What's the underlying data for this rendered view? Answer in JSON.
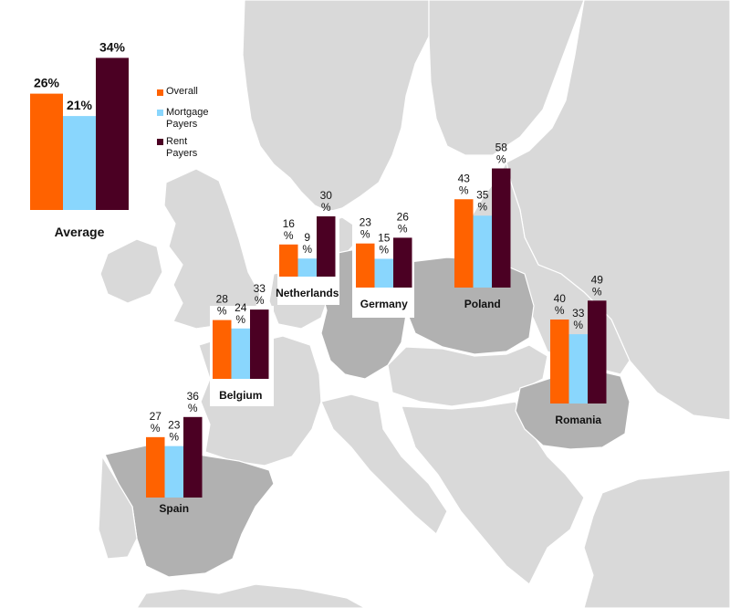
{
  "colors": {
    "overall": "#ff6200",
    "mortgage": "#89d6fd",
    "rent": "#4b0023",
    "land": "#d9d9d9",
    "highlighted": "#b1b1b1",
    "border": "#ffffff",
    "sea": "#ffffff"
  },
  "legend": [
    {
      "key": "overall",
      "label": "Overall"
    },
    {
      "key": "mortgage",
      "label": "Mortgage Payers"
    },
    {
      "key": "rent",
      "label": "Rent Payers"
    }
  ],
  "chart_data": [
    {
      "type": "bar",
      "title": "Average",
      "categories": [
        "Overall",
        "Mortgage Payers",
        "Rent Payers"
      ],
      "values": [
        26,
        21,
        34
      ],
      "value_labels": [
        "26%",
        "21%",
        "34%"
      ]
    },
    {
      "type": "bar",
      "title": "Netherlands",
      "categories": [
        "Overall",
        "Mortgage Payers",
        "Rent Payers"
      ],
      "values": [
        16,
        9,
        30
      ],
      "value_labels": [
        "16 %",
        "9 %",
        "30 %"
      ]
    },
    {
      "type": "bar",
      "title": "Germany",
      "categories": [
        "Overall",
        "Mortgage Payers",
        "Rent Payers"
      ],
      "values": [
        23,
        15,
        26
      ],
      "value_labels": [
        "23 %",
        "15 %",
        "26 %"
      ]
    },
    {
      "type": "bar",
      "title": "Poland",
      "categories": [
        "Overall",
        "Mortgage Payers",
        "Rent Payers"
      ],
      "values": [
        43,
        35,
        58
      ],
      "value_labels": [
        "43 %",
        "35 %",
        "58 %"
      ]
    },
    {
      "type": "bar",
      "title": "Belgium",
      "categories": [
        "Overall",
        "Mortgage Payers",
        "Rent Payers"
      ],
      "values": [
        28,
        24,
        33
      ],
      "value_labels": [
        "28 %",
        "24 %",
        "33 %"
      ]
    },
    {
      "type": "bar",
      "title": "Romania",
      "categories": [
        "Overall",
        "Mortgage Payers",
        "Rent Payers"
      ],
      "values": [
        40,
        33,
        49
      ],
      "value_labels": [
        "40 %",
        "33 %",
        "49 %"
      ]
    },
    {
      "type": "bar",
      "title": "Spain",
      "categories": [
        "Overall",
        "Mortgage Payers",
        "Rent Payers"
      ],
      "values": [
        27,
        23,
        36
      ],
      "value_labels": [
        "27 %",
        "23 %",
        "36 %"
      ]
    }
  ]
}
